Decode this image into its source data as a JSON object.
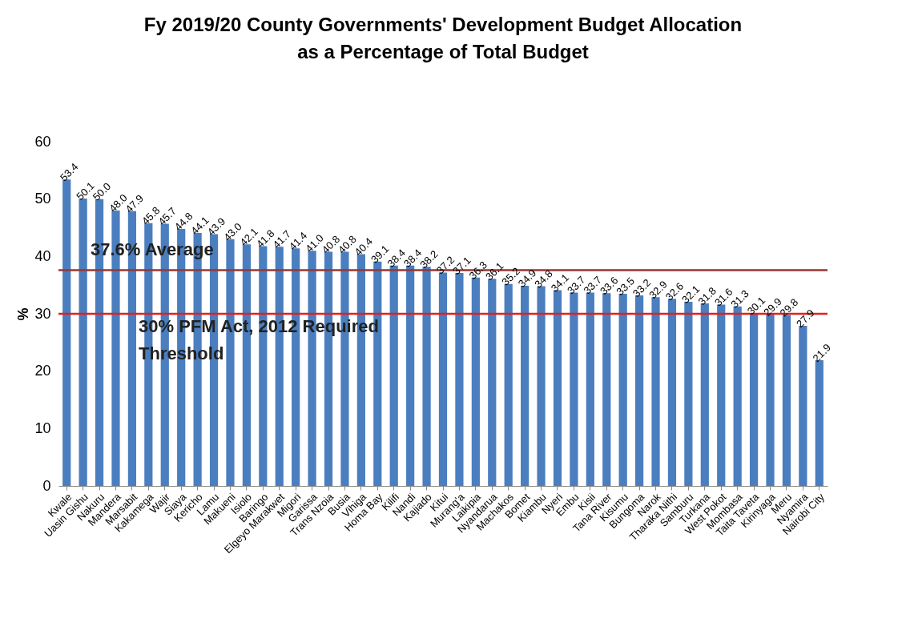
{
  "chart_data": {
    "type": "bar",
    "title": "Fy 2019/20 County Governments' Development Budget Allocation as a Percentage of Total Budget",
    "ylabel": "%",
    "categories": [
      "Kwale",
      "Uasin Gishu",
      "Nakuru",
      "Mandera",
      "Marsabit",
      "Kakamega",
      "Wajir",
      "Siaya",
      "Kericho",
      "Lamu",
      "Makueni",
      "Isiolo",
      "Baringo",
      "Elgeyo Marakwet",
      "Migori",
      "Garissa",
      "Trans Nzoia",
      "Busia",
      "Vihiga",
      "Homa Bay",
      "Kilifi",
      "Nandi",
      "Kajiado",
      "Kitui",
      "Murang'a",
      "Laikipia",
      "Nyandarua",
      "Machakos",
      "Bomet",
      "Kiambu",
      "Nyeri",
      "Embu",
      "Kisii",
      "Tana River",
      "Kisumu",
      "Bungoma",
      "Narok",
      "Tharaka Nithi",
      "Samburu",
      "Turkana",
      "West Pokot",
      "Mombasa",
      "Taita Taveta",
      "Kirinyaga",
      "Meru",
      "Nyamira",
      "Nairobi City"
    ],
    "values": [
      53.4,
      50.1,
      50.0,
      48.0,
      47.9,
      45.8,
      45.7,
      44.8,
      44.1,
      43.9,
      43.0,
      42.1,
      41.8,
      41.7,
      41.4,
      41.0,
      40.8,
      40.8,
      40.4,
      39.1,
      38.4,
      38.4,
      38.2,
      37.2,
      37.1,
      36.3,
      36.1,
      35.2,
      34.9,
      34.8,
      34.1,
      33.7,
      33.7,
      33.6,
      33.5,
      33.2,
      32.9,
      32.6,
      32.1,
      31.8,
      31.6,
      31.3,
      30.1,
      29.9,
      29.8,
      27.9,
      21.9
    ],
    "value_labels": [
      "53.4",
      "50.1",
      "50.0",
      "48.0",
      "47.9",
      "45.8",
      "45.7",
      "44.8",
      "44.1",
      "43.9",
      "43.0",
      "42.1",
      "41.8",
      "41.7",
      "41.4",
      "41.0",
      "40.8",
      "40.8",
      "40.4",
      "39.1",
      "38.4",
      "38.4",
      "38.2",
      "37.2",
      "37.1",
      "36.3",
      "36.1",
      "35.2",
      "34.9",
      "34.8",
      "34.1",
      "33.7",
      "33.7",
      "33.6",
      "33.5",
      "33.2",
      "32.9",
      "32.6",
      "32.1",
      "31.8",
      "31.6",
      "31.3",
      "30.1",
      "29.9",
      "29.8",
      "27.9",
      "21.9"
    ],
    "color": "#4a7ebf",
    "ylim": [
      0,
      60
    ],
    "yticks": [
      0,
      10,
      20,
      30,
      40,
      50,
      60
    ],
    "grid": false,
    "ref_lines": [
      {
        "axis": "y",
        "value": 37.6,
        "label": "37.6% Average",
        "color": "#953735"
      },
      {
        "axis": "y",
        "value": 30,
        "label": "30% PFM Act, 2012 Required Threshold",
        "color": "#e0201e"
      }
    ]
  }
}
